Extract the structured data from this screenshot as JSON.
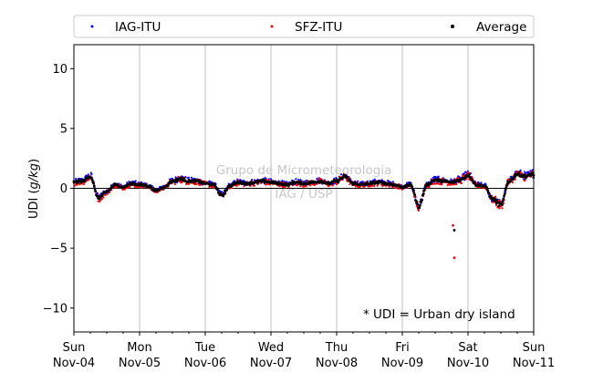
{
  "chart_data": {
    "type": "scatter",
    "ylabel": "UDI (g/kg)",
    "ylabel_parts": [
      "UDI (",
      "g/kg",
      ")"
    ],
    "ylim": [
      -12,
      12
    ],
    "yticks": [
      -10,
      -5,
      0,
      5,
      10
    ],
    "ytick_labels": [
      "−10",
      "−5",
      "0",
      "5",
      "10"
    ],
    "xlim_days": [
      0,
      7
    ],
    "x_ticks": [
      {
        "day": "Sun",
        "date": "Nov-04"
      },
      {
        "day": "Mon",
        "date": "Nov-05"
      },
      {
        "day": "Tue",
        "date": "Nov-06"
      },
      {
        "day": "Wed",
        "date": "Nov-07"
      },
      {
        "day": "Thu",
        "date": "Nov-08"
      },
      {
        "day": "Fri",
        "date": "Nov-09"
      },
      {
        "day": "Sat",
        "date": "Nov-10"
      },
      {
        "day": "Sun",
        "date": "Nov-11"
      }
    ],
    "grid": "vertical",
    "zero_line": true,
    "legend_position": "top, spanning plot width",
    "series": [
      {
        "name": "IAG-ITU",
        "color": "#0000ff",
        "marker": "dot"
      },
      {
        "name": "SFZ-ITU",
        "color": "#ff0000",
        "marker": "dot"
      },
      {
        "name": "Average",
        "color": "#000000",
        "marker": "dot"
      }
    ],
    "x": [
      "Nov-04 00:00",
      "Nov-04 03:00",
      "Nov-04 06:00",
      "Nov-04 09:00",
      "Nov-04 12:00",
      "Nov-04 15:00",
      "Nov-04 18:00",
      "Nov-04 21:00",
      "Nov-05 00:00",
      "Nov-05 03:00",
      "Nov-05 06:00",
      "Nov-05 09:00",
      "Nov-05 12:00",
      "Nov-05 15:00",
      "Nov-05 18:00",
      "Nov-05 21:00",
      "Nov-06 00:00",
      "Nov-06 03:00",
      "Nov-06 06:00",
      "Nov-06 09:00",
      "Nov-06 12:00",
      "Nov-06 15:00",
      "Nov-06 18:00",
      "Nov-06 21:00",
      "Nov-07 00:00",
      "Nov-07 03:00",
      "Nov-07 06:00",
      "Nov-07 09:00",
      "Nov-07 12:00",
      "Nov-07 15:00",
      "Nov-07 18:00",
      "Nov-07 21:00",
      "Nov-08 00:00",
      "Nov-08 03:00",
      "Nov-08 06:00",
      "Nov-08 09:00",
      "Nov-08 12:00",
      "Nov-08 15:00",
      "Nov-08 18:00",
      "Nov-08 21:00",
      "Nov-09 00:00",
      "Nov-09 03:00",
      "Nov-09 06:00",
      "Nov-09 09:00",
      "Nov-09 12:00",
      "Nov-09 15:00",
      "Nov-09 18:00",
      "Nov-09 21:00",
      "Nov-10 00:00",
      "Nov-10 03:00",
      "Nov-10 06:00",
      "Nov-10 09:00",
      "Nov-10 12:00",
      "Nov-10 15:00",
      "Nov-10 18:00",
      "Nov-10 21:00",
      "Nov-11 00:00"
    ],
    "avg_values": [
      0.5,
      0.6,
      1.0,
      -0.8,
      -0.3,
      0.3,
      0.1,
      0.4,
      0.3,
      0.2,
      -0.2,
      0.1,
      0.6,
      0.8,
      0.6,
      0.6,
      0.4,
      0.3,
      -0.6,
      0.2,
      0.5,
      0.4,
      0.5,
      0.6,
      0.5,
      0.4,
      0.3,
      0.5,
      0.4,
      0.5,
      0.6,
      0.4,
      0.6,
      1.0,
      0.4,
      0.3,
      0.4,
      0.5,
      0.4,
      0.3,
      0.1,
      0.3,
      -1.5,
      0.3,
      0.7,
      0.6,
      0.5,
      0.7,
      1.1,
      0.3,
      0.2,
      -0.9,
      -1.4,
      0.6,
      1.2,
      1.0,
      1.2
    ],
    "outliers": [
      {
        "series": "SFZ-ITU",
        "x": "Nov-09 19:00",
        "y": -5.8
      },
      {
        "series": "Average",
        "x": "Nov-09 19:00",
        "y": -3.5
      },
      {
        "series": "SFZ-ITU",
        "x": "Nov-09 18:30",
        "y": -3.1
      }
    ],
    "watermark": [
      "Grupo de Micrometeorologia",
      "IAG / USP"
    ],
    "annotation": "* UDI = Urban dry island"
  }
}
